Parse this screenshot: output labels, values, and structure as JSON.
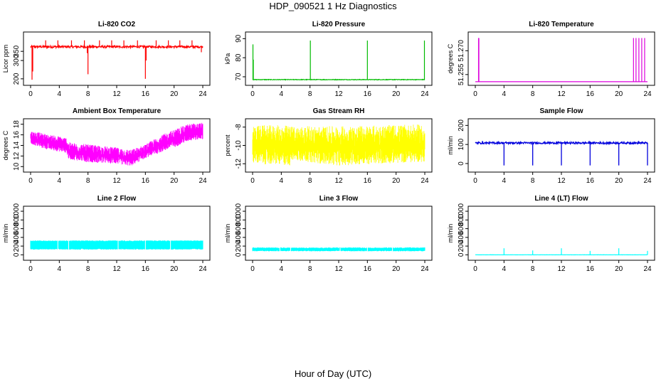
{
  "figure": {
    "title": "HDP_090521  1 Hz Diagnostics",
    "xlabel": "Hour of Day (UTC)"
  },
  "chart_data": [
    {
      "type": "line",
      "title": "Li-820 CO2",
      "ylabel": "Licor ppm",
      "color": "#ff0000",
      "xlim": [
        0,
        24
      ],
      "ylim": [
        180,
        440
      ],
      "xticks": [
        0,
        4,
        8,
        12,
        16,
        20,
        24
      ],
      "yticks": [
        200,
        300,
        350
      ],
      "baseline": 375,
      "noise": 6,
      "spikes": [
        [
          0.2,
          195
        ],
        [
          0.3,
          240
        ],
        [
          2.1,
          410
        ],
        [
          3.8,
          410
        ],
        [
          5.7,
          410
        ],
        [
          7.5,
          410
        ],
        [
          7.9,
          340
        ],
        [
          8.0,
          225
        ],
        [
          9.6,
          410
        ],
        [
          11.3,
          410
        ],
        [
          13.0,
          410
        ],
        [
          14.9,
          410
        ],
        [
          16.0,
          200
        ],
        [
          16.1,
          300
        ],
        [
          17.5,
          410
        ],
        [
          19.2,
          410
        ],
        [
          20.8,
          410
        ],
        [
          22.5,
          410
        ],
        [
          23.8,
          345
        ]
      ],
      "series": [
        {
          "values": []
        }
      ]
    },
    {
      "type": "line",
      "title": "Li-820 Pressure",
      "ylabel": "kPa",
      "color": "#00bb00",
      "xlim": [
        0,
        24
      ],
      "ylim": [
        67,
        92
      ],
      "xticks": [
        0,
        4,
        8,
        12,
        16,
        20,
        24
      ],
      "yticks": [
        70,
        80,
        90
      ],
      "baseline": 68.5,
      "noise": 0.15,
      "spikes": [
        [
          0.05,
          87
        ],
        [
          0.1,
          79
        ],
        [
          8.05,
          89
        ],
        [
          16.0,
          89
        ],
        [
          23.95,
          89
        ]
      ],
      "series": [
        {
          "values": []
        }
      ]
    },
    {
      "type": "line",
      "title": "Li-820 Temperature",
      "ylabel": "degrees C",
      "color": "#dd00dd",
      "xlim": [
        0,
        24
      ],
      "ylim": [
        51.25,
        51.28
      ],
      "xticks": [
        0,
        4,
        8,
        12,
        16,
        20,
        24
      ],
      "yticks": [
        51.255,
        51.27
      ],
      "ytick_labels": [
        "51.255",
        "51.270"
      ],
      "baseline": 51.2505,
      "noise": 0,
      "spikes": [
        [
          0.45,
          51.278
        ],
        [
          0.5,
          51.278
        ],
        [
          22.05,
          51.278
        ],
        [
          22.4,
          51.278
        ],
        [
          22.8,
          51.278
        ],
        [
          23.2,
          51.278
        ],
        [
          23.6,
          51.278
        ]
      ],
      "series": [
        {
          "values": []
        }
      ]
    },
    {
      "type": "line",
      "title": "Ambient Box Temperature",
      "ylabel": "degrees C",
      "color": "#ff00ff",
      "xlim": [
        0,
        24
      ],
      "ylim": [
        9.5,
        18.5
      ],
      "xticks": [
        0,
        4,
        8,
        12,
        16,
        20,
        24
      ],
      "yticks": [
        10,
        12,
        14,
        16,
        18
      ],
      "envelope": [
        [
          0,
          16.8,
          14.2
        ],
        [
          2,
          16.2,
          13.3
        ],
        [
          5,
          15.5,
          12.6
        ],
        [
          5.3,
          14.6,
          11.4
        ],
        [
          8,
          14.2,
          10.8
        ],
        [
          12,
          13.6,
          10.5
        ],
        [
          14,
          13.2,
          10.1
        ],
        [
          16,
          14.2,
          11.6
        ],
        [
          18,
          15.8,
          12.6
        ],
        [
          20,
          17.0,
          13.6
        ],
        [
          22,
          18.1,
          14.8
        ],
        [
          24,
          18.3,
          15.2
        ]
      ],
      "series": [
        {
          "values": []
        }
      ]
    },
    {
      "type": "line",
      "title": "Gas Stream RH",
      "ylabel": "percent",
      "color": "#ffff00",
      "xlim": [
        0,
        24
      ],
      "ylim": [
        -12.6,
        -7.4
      ],
      "xticks": [
        0,
        4,
        8,
        12,
        16,
        20,
        24
      ],
      "yticks": [
        -12,
        -10,
        -8
      ],
      "envelope": [
        [
          0,
          -7.8,
          -12.0
        ],
        [
          5.2,
          -7.8,
          -12.2
        ],
        [
          5.3,
          -7.9,
          -11.6
        ],
        [
          12,
          -7.9,
          -12.2
        ],
        [
          24,
          -7.7,
          -11.8
        ]
      ],
      "series": [
        {
          "values": []
        }
      ]
    },
    {
      "type": "line",
      "title": "Sample Flow",
      "ylabel": "ml/min",
      "color": "#0000dd",
      "xlim": [
        0,
        24
      ],
      "ylim": [
        -30,
        220
      ],
      "xticks": [
        0,
        4,
        8,
        12,
        16,
        20,
        24
      ],
      "yticks": [
        0,
        100,
        200
      ],
      "baseline": 108,
      "noise": 5,
      "dips": [
        4.0,
        8.0,
        12.0,
        16.0,
        20.0,
        24.0
      ],
      "dip_to": -10,
      "series": [
        {
          "values": []
        }
      ]
    },
    {
      "type": "area",
      "title": "Line 2 Flow",
      "ylabel": "ml/min",
      "color": "#00ffff",
      "xlim": [
        0,
        24
      ],
      "ylim": [
        -60,
        1050
      ],
      "xticks": [
        0,
        4,
        8,
        12,
        16,
        20,
        24
      ],
      "yticks": [
        0,
        200,
        400,
        600,
        800,
        1000
      ],
      "band": [
        120,
        330
      ],
      "series": [
        {
          "values": []
        }
      ]
    },
    {
      "type": "area",
      "title": "Line 3 Flow",
      "ylabel": "ml/min",
      "color": "#00ffff",
      "xlim": [
        0,
        24
      ],
      "ylim": [
        -60,
        1050
      ],
      "xticks": [
        0,
        4,
        8,
        12,
        16,
        20,
        24
      ],
      "yticks": [
        0,
        200,
        400,
        600,
        800,
        1000
      ],
      "band": [
        80,
        170
      ],
      "series": [
        {
          "values": []
        }
      ]
    },
    {
      "type": "line",
      "title": "Line 4 (LT) Flow",
      "ylabel": "ml/min",
      "color": "#00ffff",
      "xlim": [
        0,
        24
      ],
      "ylim": [
        -60,
        1050
      ],
      "xticks": [
        0,
        4,
        8,
        12,
        16,
        20,
        24
      ],
      "yticks": [
        0,
        200,
        400,
        600,
        800,
        1000
      ],
      "baseline": 0,
      "noise": 2,
      "spikes": [
        [
          4.0,
          150
        ],
        [
          8.0,
          100
        ],
        [
          12.0,
          150
        ],
        [
          16.0,
          90
        ],
        [
          20.0,
          150
        ],
        [
          24.0,
          90
        ]
      ],
      "series": [
        {
          "values": []
        }
      ]
    }
  ]
}
